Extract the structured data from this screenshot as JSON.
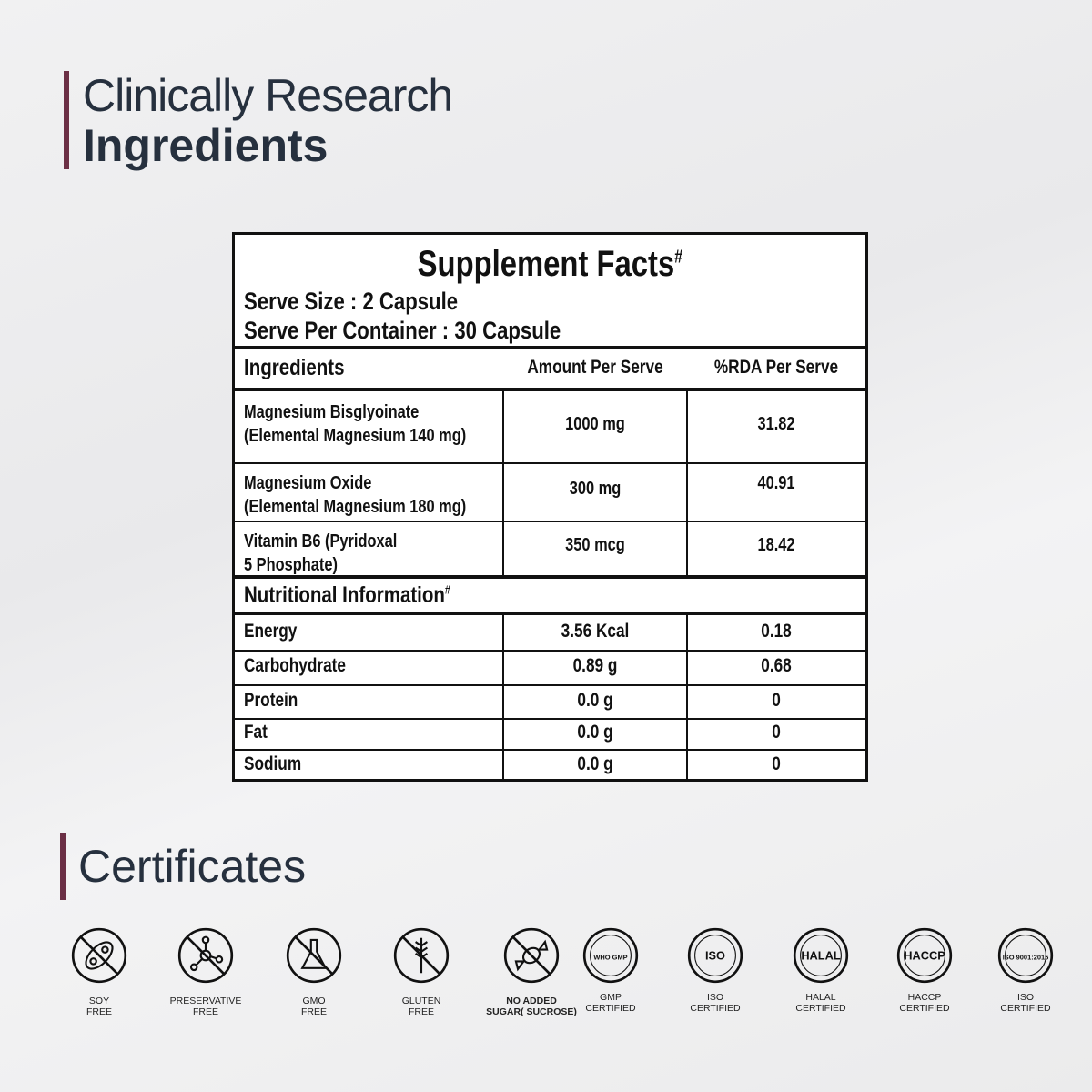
{
  "heading": {
    "line1": "Clinically Research",
    "line2": "Ingredients"
  },
  "facts": {
    "title": "Supplement Facts",
    "title_mark": "#",
    "serve_size": "Serve Size : 2 Capsule",
    "serve_per_container": "Serve Per Container : 30 Capsule",
    "columns": [
      "Ingredients",
      "Amount Per Serve",
      "%RDA Per Serve"
    ],
    "ingredients": [
      {
        "name1": "Magnesium Bisglyoinate",
        "name2": "(Elemental Magnesium 140 mg)",
        "amount": "1000 mg",
        "rda": "31.82"
      },
      {
        "name1": "Magnesium Oxide",
        "name2": "(Elemental Magnesium 180 mg)",
        "amount": "300 mg",
        "rda": "40.91"
      },
      {
        "name1": "Vitamin B6 (Pyridoxal",
        "name2": "5 Phosphate)",
        "amount": "350 mcg",
        "rda": "18.42"
      }
    ],
    "nutrition_title": "Nutritional Information",
    "nutrition_mark": "#",
    "nutrition": [
      {
        "name": "Energy",
        "amount": "3.56 Kcal",
        "rda": "0.18"
      },
      {
        "name": "Carbohydrate",
        "amount": "0.89 g",
        "rda": "0.68"
      },
      {
        "name": "Protein",
        "amount": "0.0 g",
        "rda": "0"
      },
      {
        "name": "Fat",
        "amount": "0.0 g",
        "rda": "0"
      },
      {
        "name": "Sodium",
        "amount": "0.0 g",
        "rda": "0"
      }
    ]
  },
  "certificates": {
    "title": "Certificates",
    "items": [
      {
        "icon": "soy-free-icon",
        "l1": "SOY",
        "l2": "FREE"
      },
      {
        "icon": "preservative-free-icon",
        "l1": "PRESERVATIVE",
        "l2": "FREE"
      },
      {
        "icon": "gmo-free-icon",
        "l1": "GMO",
        "l2": "FREE"
      },
      {
        "icon": "gluten-free-icon",
        "l1": "GLUTEN",
        "l2": "FREE"
      },
      {
        "icon": "no-added-sugar-icon",
        "l1": "NO ADDED",
        "l2": "SUGAR( SUCROSE)"
      },
      {
        "icon": "gmp-certified-icon",
        "l1": "GMP",
        "l2": "CERTIFIED",
        "badge": "WHO GMP"
      },
      {
        "icon": "iso-food-safety-icon",
        "l1": "ISO",
        "l2": "CERTIFIED",
        "badge": "ISO"
      },
      {
        "icon": "halal-icon",
        "l1": "HALAL",
        "l2": "CERTIFIED",
        "badge": "HALAL"
      },
      {
        "icon": "haccp-icon",
        "l1": "HACCP",
        "l2": "CERTIFIED",
        "badge": "HACCP"
      },
      {
        "icon": "iso-9001-icon",
        "l1": "ISO",
        "l2": "CERTIFIED",
        "badge": "ISO 9001:2015"
      }
    ]
  },
  "colors": {
    "accent": "#6b2f45",
    "text": "#26303e"
  }
}
